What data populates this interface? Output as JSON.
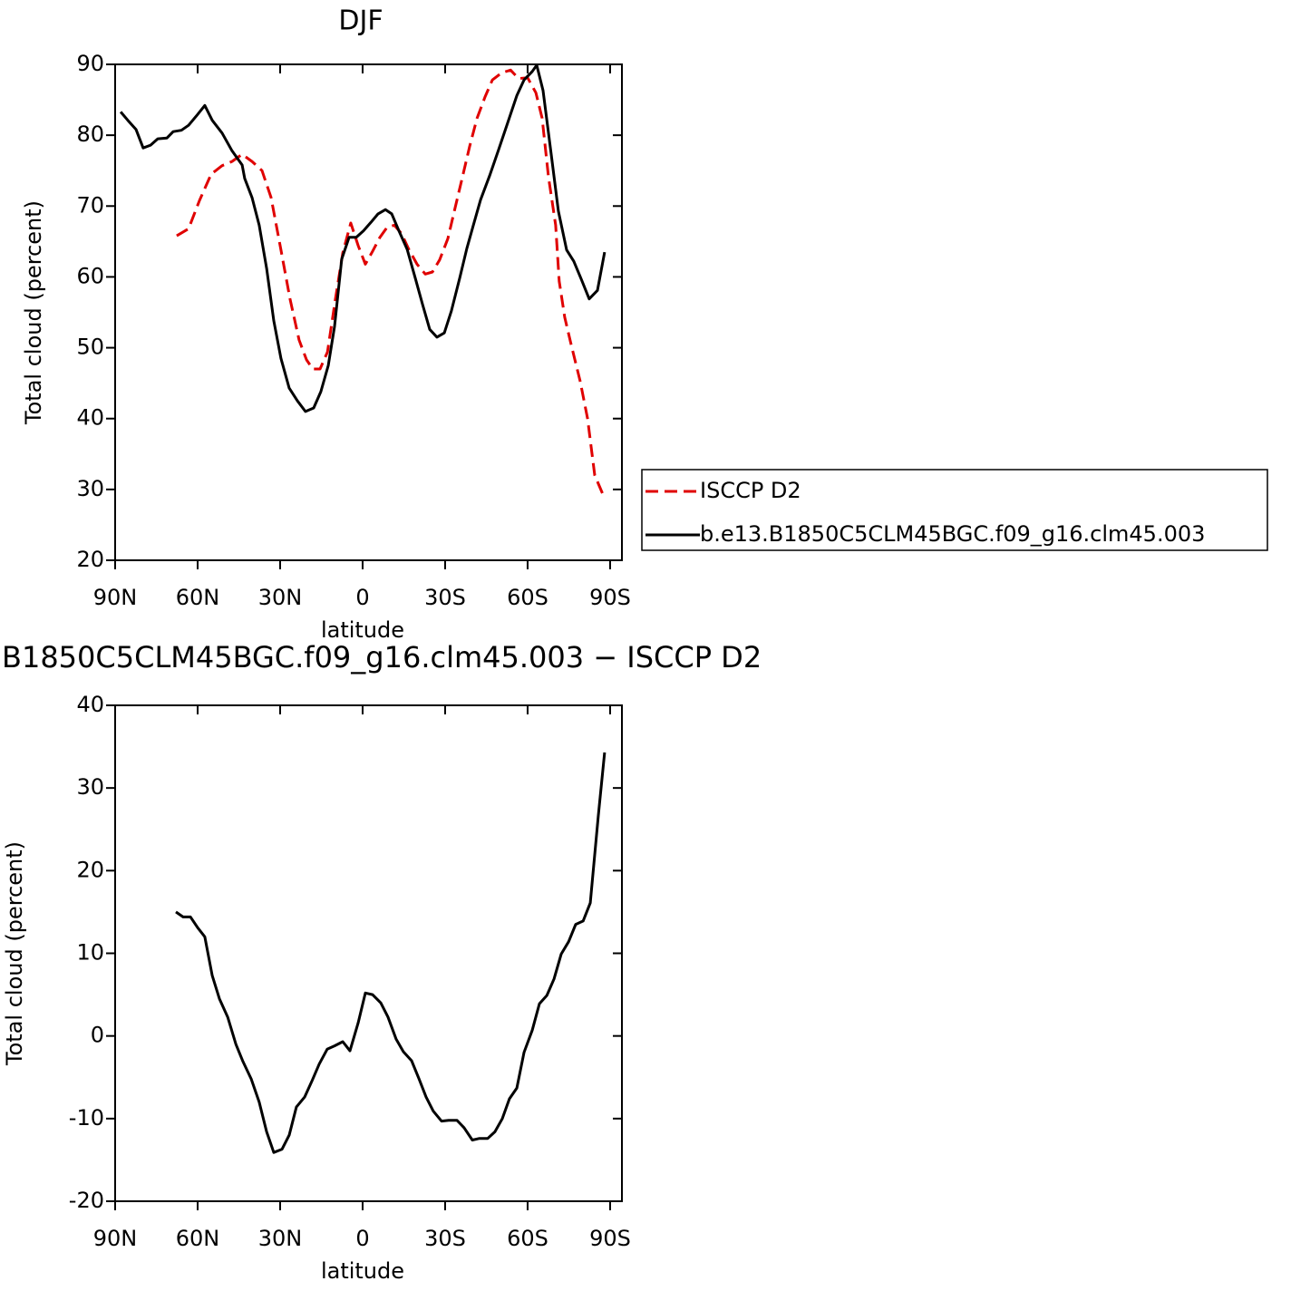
{
  "chart_data": [
    {
      "type": "line",
      "title": "DJF",
      "xlabel": "latitude",
      "ylabel": "Total cloud (percent)",
      "xlim": [
        90,
        -94.3
      ],
      "xticks": [
        {
          "value": 90,
          "label": "90N"
        },
        {
          "value": 60,
          "label": "60N"
        },
        {
          "value": 30,
          "label": "30N"
        },
        0,
        {
          "value": -30,
          "label": "30S"
        },
        {
          "value": -60,
          "label": "60S"
        },
        {
          "value": -90,
          "label": "90S"
        }
      ],
      "ylim": [
        20,
        90
      ],
      "yticks": [
        20,
        30,
        40,
        50,
        60,
        70,
        80,
        90
      ],
      "legend": "right",
      "series": [
        {
          "name": "ISCCP D2",
          "color": "#e00000",
          "dash": "dashed",
          "x": [
            67.6,
            63.3,
            59.3,
            55.1,
            51.1,
            47.5,
            43.8,
            40.2,
            36.6,
            33.3,
            29.7,
            26.4,
            23.1,
            20.4,
            18.1,
            15.5,
            12.8,
            9.9,
            7.2,
            4.3,
            1.6,
            -1.0,
            -3.6,
            -6.3,
            -8.9,
            -11.5,
            -14.2,
            -16.8,
            -19.8,
            -22.8,
            -25.4,
            -28.0,
            -31.0,
            -33.6,
            -36.3,
            -38.9,
            -41.6,
            -44.5,
            -47.2,
            -50.5,
            -53.8,
            -56.7,
            -60.0,
            -63.0,
            -65.3,
            -67.6,
            -70.2,
            -71.5,
            -73.5,
            -75.8,
            -79.1,
            -81.8,
            -84.4,
            -87.7
          ],
          "values": [
            65.8,
            66.8,
            70.8,
            74.5,
            75.7,
            76.3,
            77.3,
            76.3,
            75.0,
            71.2,
            63.8,
            56.9,
            51.1,
            48.3,
            47.0,
            47.0,
            49.4,
            56.9,
            63.4,
            67.6,
            64.4,
            61.8,
            63.6,
            65.6,
            67.0,
            67.3,
            66.1,
            63.9,
            61.8,
            60.4,
            60.7,
            62.4,
            65.4,
            69.7,
            74.1,
            78.4,
            82.4,
            85.4,
            87.8,
            88.8,
            89.2,
            88.0,
            88.1,
            86.0,
            82.4,
            74.1,
            67.3,
            59.4,
            54.3,
            50.5,
            45.3,
            40.0,
            32.0,
            29.0
          ]
        },
        {
          "name": "b.e13.B1850C5CLM45BGC.f09_g16.clm45.003",
          "color": "#000000",
          "dash": "solid",
          "x": [
            88.0,
            85.4,
            82.4,
            79.8,
            77.1,
            74.5,
            71.2,
            68.9,
            65.9,
            63.3,
            60.3,
            57.4,
            54.7,
            51.1,
            47.5,
            43.8,
            42.9,
            40.2,
            37.6,
            34.9,
            32.3,
            29.7,
            26.7,
            23.7,
            20.8,
            17.8,
            15.2,
            12.5,
            10.2,
            7.6,
            4.9,
            2.3,
            -0.3,
            -3.0,
            -5.6,
            -8.3,
            -10.6,
            -13.2,
            -16.2,
            -19.1,
            -21.8,
            -24.4,
            -27.0,
            -29.7,
            -32.3,
            -35.3,
            -37.9,
            -40.2,
            -42.9,
            -46.2,
            -49.5,
            -52.8,
            -56.1,
            -58.7,
            -61.7,
            -63.3,
            -65.6,
            -68.6,
            -71.2,
            -74.2,
            -76.8,
            -79.5,
            -82.4,
            -85.4,
            -88.0
          ],
          "values": [
            83.3,
            82.1,
            80.8,
            78.2,
            78.6,
            79.5,
            79.6,
            80.5,
            80.7,
            81.4,
            82.8,
            84.2,
            82.1,
            80.3,
            77.8,
            75.8,
            73.9,
            71.2,
            67.3,
            61.2,
            53.8,
            48.5,
            44.3,
            42.5,
            41.0,
            41.5,
            43.8,
            47.5,
            53.0,
            62.5,
            65.6,
            65.6,
            66.5,
            67.7,
            68.9,
            69.5,
            68.9,
            66.5,
            63.9,
            59.9,
            56.1,
            52.6,
            51.5,
            52.1,
            55.2,
            59.8,
            64.0,
            67.2,
            70.9,
            74.3,
            78.0,
            81.8,
            85.6,
            87.8,
            89.0,
            89.9,
            86.3,
            77.3,
            69.3,
            63.8,
            62.2,
            59.7,
            56.9,
            58.1,
            63.5
          ]
        }
      ]
    },
    {
      "type": "line",
      "title": "B1850C5CLM45BGC.f09_g16.clm45.003 − ISCCP D2",
      "xlabel": "latitude",
      "ylabel": "Total cloud (percent)",
      "xlim": [
        90,
        -94.3
      ],
      "xticks": [
        {
          "value": 90,
          "label": "90N"
        },
        {
          "value": 60,
          "label": "60N"
        },
        {
          "value": 30,
          "label": "30N"
        },
        0,
        {
          "value": -30,
          "label": "30S"
        },
        {
          "value": -60,
          "label": "60S"
        },
        {
          "value": -90,
          "label": "90S"
        }
      ],
      "ylim": [
        -20,
        40
      ],
      "yticks": [
        -20,
        -10,
        0,
        10,
        20,
        30,
        40
      ],
      "series": [
        {
          "color": "#000000",
          "dash": "solid",
          "x": [
            67.9,
            65.3,
            62.6,
            60.0,
            57.4,
            54.7,
            52.1,
            49.1,
            46.1,
            43.5,
            40.5,
            37.6,
            34.9,
            32.3,
            29.3,
            26.7,
            24.1,
            21.1,
            18.5,
            15.8,
            12.9,
            10.2,
            7.2,
            4.6,
            1.6,
            -1.0,
            -3.6,
            -6.6,
            -9.2,
            -12.2,
            -14.8,
            -17.8,
            -20.5,
            -23.1,
            -25.7,
            -28.7,
            -31.3,
            -34.3,
            -36.9,
            -39.9,
            -42.5,
            -45.5,
            -48.1,
            -50.8,
            -53.4,
            -56.1,
            -58.7,
            -61.7,
            -64.3,
            -67.0,
            -69.6,
            -72.2,
            -74.9,
            -77.5,
            -80.2,
            -82.8,
            -85.7,
            -88.0
          ],
          "values": [
            15.0,
            14.4,
            14.4,
            13.1,
            12.0,
            7.3,
            4.5,
            2.3,
            -1.0,
            -3.1,
            -5.2,
            -8.0,
            -11.6,
            -14.1,
            -13.7,
            -12.0,
            -8.6,
            -7.4,
            -5.5,
            -3.4,
            -1.6,
            -1.2,
            -0.7,
            -1.8,
            1.6,
            5.2,
            5.0,
            4.0,
            2.3,
            -0.4,
            -1.9,
            -3.0,
            -5.2,
            -7.4,
            -9.1,
            -10.3,
            -10.2,
            -10.2,
            -11.1,
            -12.6,
            -12.4,
            -12.4,
            -11.6,
            -10.0,
            -7.6,
            -6.3,
            -2.0,
            0.7,
            3.9,
            4.9,
            6.9,
            9.9,
            11.4,
            13.5,
            13.9,
            16.1,
            26.6,
            34.3
          ]
        }
      ]
    }
  ]
}
